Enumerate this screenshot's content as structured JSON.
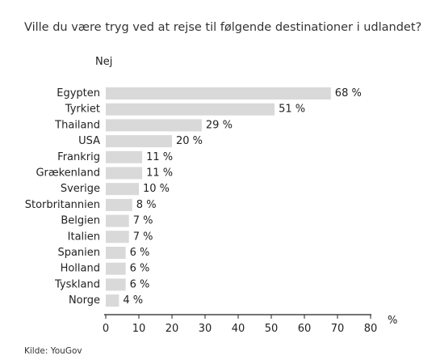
{
  "chart_data": {
    "type": "bar",
    "orientation": "horizontal",
    "title": "Ville du være tryg ved at rejse til følgende destinationer i udlandet?",
    "subtitle": "Nej",
    "categories": [
      "Egypten",
      "Tyrkiet",
      "Thailand",
      "USA",
      "Frankrig",
      "Grækenland",
      "Sverige",
      "Storbritannien",
      "Belgien",
      "Italien",
      "Spanien",
      "Holland",
      "Tyskland",
      "Norge"
    ],
    "values": [
      68,
      51,
      29,
      20,
      11,
      11,
      10,
      8,
      7,
      7,
      6,
      6,
      6,
      4
    ],
    "value_labels": [
      "68 %",
      "51 %",
      "29 %",
      "20 %",
      "11 %",
      "11 %",
      "10 %",
      "8 %",
      "7 %",
      "7 %",
      "6 %",
      "6 %",
      "6 %",
      "4 %"
    ],
    "xlim": [
      0,
      80
    ],
    "xticks": [
      0,
      10,
      20,
      30,
      40,
      50,
      60,
      70,
      80
    ],
    "xtick_labels": [
      "0",
      "10",
      "20",
      "30",
      "40",
      "50",
      "60",
      "70",
      "80"
    ],
    "xunit": "%",
    "bar_color": "#d9d9d9",
    "axis_color": "#222222",
    "grid": false,
    "source": "Kilde: YouGov"
  }
}
